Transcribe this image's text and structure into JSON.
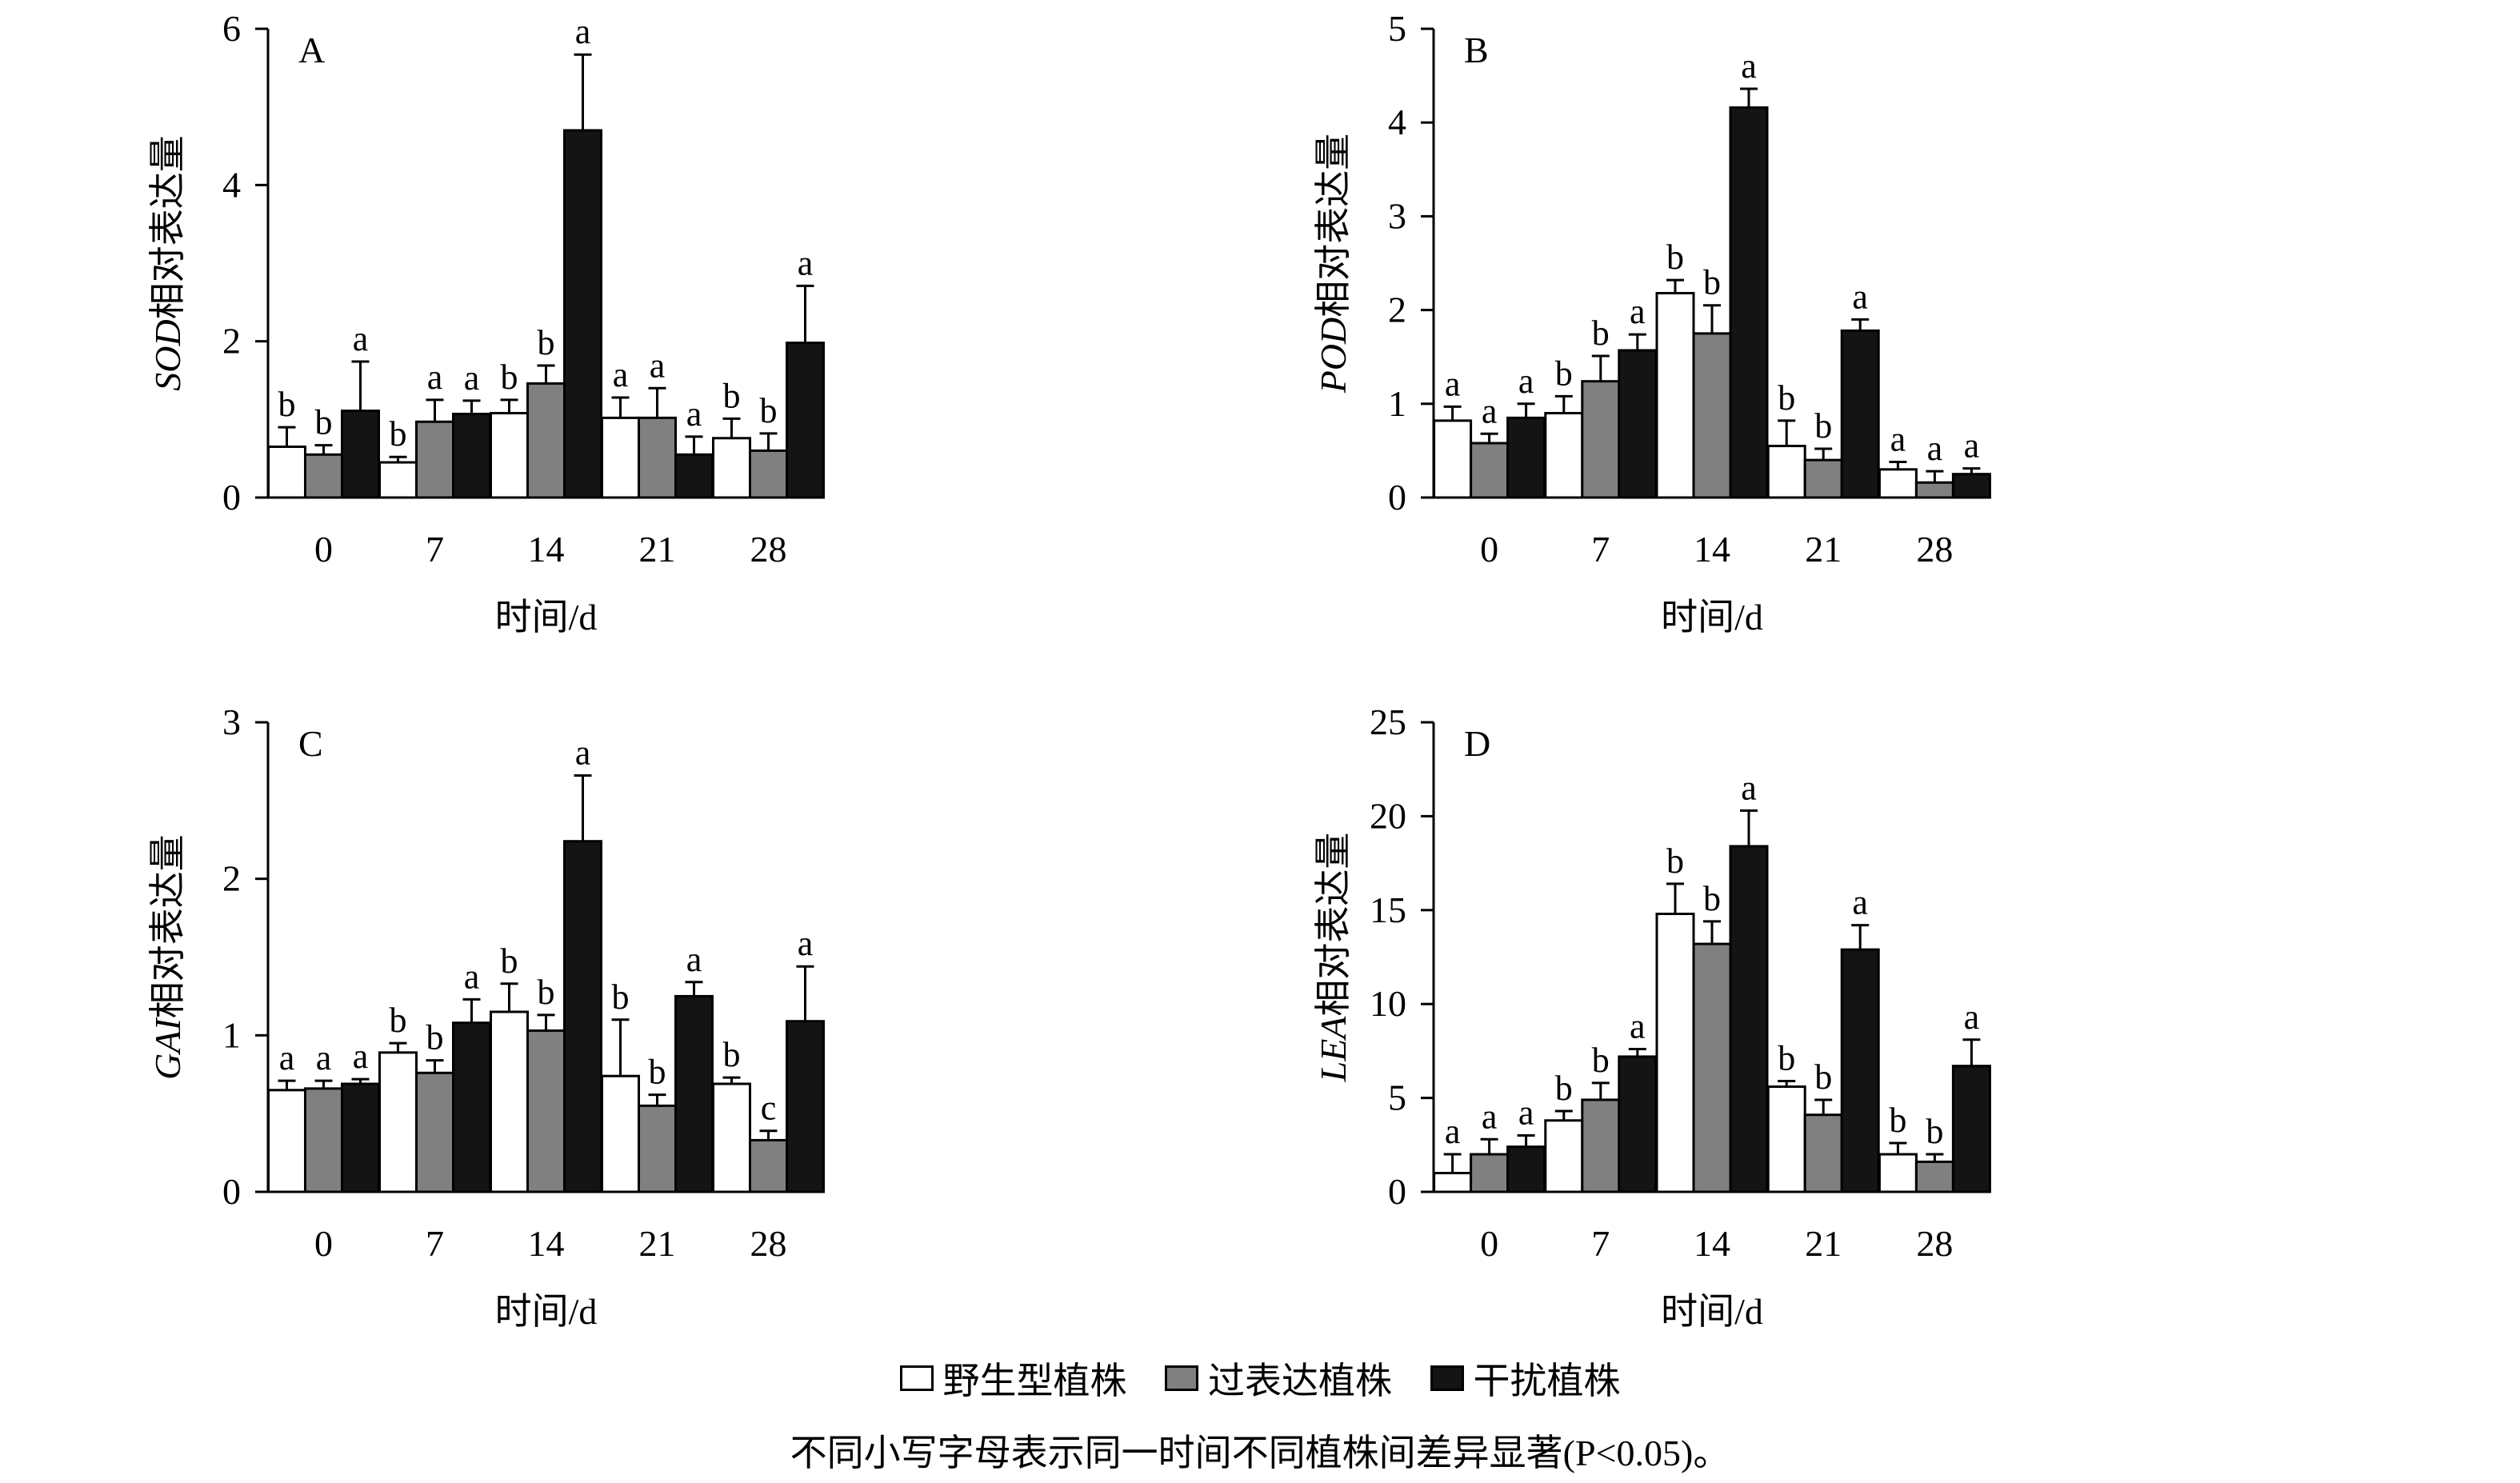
{
  "legend": {
    "wild": "野生型植株",
    "over": "过表达植株",
    "rnai": "干扰植株"
  },
  "colors": {
    "wild": "#ffffff",
    "over": "#808080",
    "rnai": "#141414"
  },
  "note": "不同小写字母表示同一时间不同植株间差异显著(P<0.05)。",
  "chart_data": [
    {
      "type": "bar",
      "panel": "A",
      "ylabel_gene": "SOD",
      "ylabel_suffix": "相对表达量",
      "xlabel": "时间/d",
      "categories": [
        "0",
        "7",
        "14",
        "21",
        "28"
      ],
      "ylim": [
        0,
        6
      ],
      "yticks": [
        "0",
        "2",
        "4",
        "6"
      ],
      "ytick_values": [
        0,
        2,
        4,
        6
      ],
      "series": [
        {
          "key": "wild",
          "values": [
            0.65,
            0.45,
            1.08,
            1.02,
            0.76
          ],
          "errors": [
            0.25,
            0.07,
            0.17,
            0.26,
            0.25
          ],
          "letters": [
            "b",
            "b",
            "b",
            "a",
            "b"
          ]
        },
        {
          "key": "over",
          "values": [
            0.55,
            0.97,
            1.46,
            1.02,
            0.6
          ],
          "errors": [
            0.12,
            0.28,
            0.23,
            0.38,
            0.22
          ],
          "letters": [
            "b",
            "a",
            "b",
            "a",
            "b"
          ]
        },
        {
          "key": "rnai",
          "values": [
            1.11,
            1.07,
            4.7,
            0.55,
            1.98
          ],
          "errors": [
            0.63,
            0.17,
            0.97,
            0.23,
            0.73
          ],
          "letters": [
            "a",
            "a",
            "a",
            "a",
            "a"
          ]
        }
      ]
    },
    {
      "type": "bar",
      "panel": "B",
      "ylabel_gene": "POD",
      "ylabel_suffix": "相对表达量",
      "xlabel": "时间/d",
      "categories": [
        "0",
        "7",
        "14",
        "21",
        "28"
      ],
      "ylim": [
        0,
        5
      ],
      "yticks": [
        "0",
        "1",
        "2",
        "3",
        "4",
        "5"
      ],
      "ytick_values": [
        0,
        1,
        2,
        3,
        4,
        5
      ],
      "series": [
        {
          "key": "wild",
          "values": [
            0.82,
            0.9,
            2.18,
            0.55,
            0.3
          ],
          "errors": [
            0.15,
            0.18,
            0.14,
            0.27,
            0.08
          ],
          "letters": [
            "a",
            "b",
            "b",
            "b",
            "a"
          ]
        },
        {
          "key": "over",
          "values": [
            0.58,
            1.24,
            1.75,
            0.4,
            0.16
          ],
          "errors": [
            0.1,
            0.27,
            0.3,
            0.12,
            0.12
          ],
          "letters": [
            "a",
            "b",
            "b",
            "b",
            "a"
          ]
        },
        {
          "key": "rnai",
          "values": [
            0.85,
            1.57,
            4.16,
            1.78,
            0.25
          ],
          "errors": [
            0.15,
            0.17,
            0.2,
            0.12,
            0.06
          ],
          "letters": [
            "a",
            "a",
            "a",
            "a",
            "a"
          ]
        }
      ]
    },
    {
      "type": "bar",
      "panel": "C",
      "ylabel_gene": "GAI",
      "ylabel_suffix": "相对表达量",
      "xlabel": "时间/d",
      "categories": [
        "0",
        "7",
        "14",
        "21",
        "28"
      ],
      "ylim": [
        0,
        3
      ],
      "yticks": [
        "0",
        "1",
        "2",
        "3"
      ],
      "ytick_values": [
        0,
        1,
        2,
        3
      ],
      "series": [
        {
          "key": "wild",
          "values": [
            0.65,
            0.89,
            1.15,
            0.74,
            0.69
          ],
          "errors": [
            0.06,
            0.06,
            0.18,
            0.36,
            0.04
          ],
          "letters": [
            "a",
            "b",
            "b",
            "b",
            "b"
          ]
        },
        {
          "key": "over",
          "values": [
            0.66,
            0.76,
            1.03,
            0.55,
            0.33
          ],
          "errors": [
            0.05,
            0.08,
            0.1,
            0.07,
            0.06
          ],
          "letters": [
            "a",
            "b",
            "b",
            "b",
            "c"
          ]
        },
        {
          "key": "rnai",
          "values": [
            0.69,
            1.08,
            2.24,
            1.25,
            1.09
          ],
          "errors": [
            0.03,
            0.15,
            0.42,
            0.09,
            0.35
          ],
          "letters": [
            "a",
            "a",
            "a",
            "a",
            "a"
          ]
        }
      ]
    },
    {
      "type": "bar",
      "panel": "D",
      "ylabel_gene": "LEA",
      "ylabel_suffix": "相对表达量",
      "xlabel": "时间/d",
      "categories": [
        "0",
        "7",
        "14",
        "21",
        "28"
      ],
      "ylim": [
        0,
        25
      ],
      "yticks": [
        "0",
        "5",
        "10",
        "15",
        "20",
        "25"
      ],
      "ytick_values": [
        0,
        5,
        10,
        15,
        20,
        25
      ],
      "series": [
        {
          "key": "wild",
          "values": [
            1.0,
            3.8,
            14.8,
            5.6,
            2.0
          ],
          "errors": [
            1.0,
            0.5,
            1.6,
            0.3,
            0.6
          ],
          "letters": [
            "a",
            "b",
            "b",
            "b",
            "b"
          ]
        },
        {
          "key": "over",
          "values": [
            2.0,
            4.9,
            13.2,
            4.1,
            1.6
          ],
          "errors": [
            0.8,
            0.9,
            1.2,
            0.8,
            0.4
          ],
          "letters": [
            "a",
            "b",
            "b",
            "b",
            "b"
          ]
        },
        {
          "key": "rnai",
          "values": [
            2.4,
            7.2,
            18.4,
            12.9,
            6.7
          ],
          "errors": [
            0.6,
            0.4,
            1.9,
            1.3,
            1.4
          ],
          "letters": [
            "a",
            "a",
            "a",
            "a",
            "a"
          ]
        }
      ]
    }
  ]
}
